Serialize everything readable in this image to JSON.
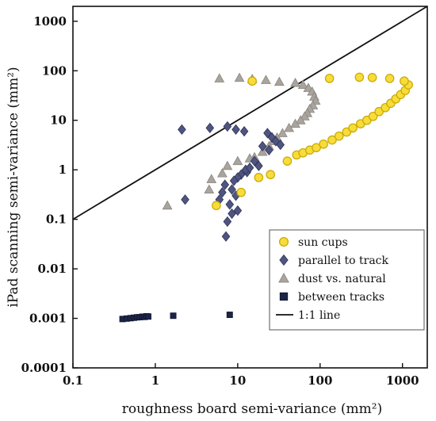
{
  "chart_data": {
    "type": "scatter",
    "xlabel": "roughness board semi-variance (mm²)",
    "ylabel": "iPad scanning semi-variance (mm²)",
    "xscale": "log",
    "yscale": "log",
    "xlim": [
      0.1,
      2000
    ],
    "ylim": [
      0.0001,
      2000
    ],
    "x_ticks": [
      {
        "value": 0.1,
        "label": "0.1"
      },
      {
        "value": 1,
        "label": "1"
      },
      {
        "value": 10,
        "label": "10"
      },
      {
        "value": 100,
        "label": "100"
      },
      {
        "value": 1000,
        "label": "1000"
      }
    ],
    "y_ticks": [
      {
        "value": 0.0001,
        "label": "0.0001"
      },
      {
        "value": 0.001,
        "label": "0.001"
      },
      {
        "value": 0.01,
        "label": "0.01"
      },
      {
        "value": 0.1,
        "label": "0.1"
      },
      {
        "value": 1,
        "label": "1"
      },
      {
        "value": 10,
        "label": "10"
      },
      {
        "value": 100,
        "label": "100"
      },
      {
        "value": 1000,
        "label": "1000"
      }
    ],
    "grid": false,
    "legend_position": "bottom-right",
    "series": [
      {
        "name": "sun cups",
        "marker": "circle",
        "color": "#f7dc3a",
        "stroke": "#c9a800",
        "points": [
          [
            5.5,
            0.19
          ],
          [
            11,
            0.35
          ],
          [
            18,
            0.7
          ],
          [
            25,
            0.8
          ],
          [
            40,
            1.5
          ],
          [
            52,
            2.0
          ],
          [
            62,
            2.2
          ],
          [
            75,
            2.5
          ],
          [
            90,
            2.8
          ],
          [
            110,
            3.3
          ],
          [
            140,
            4.0
          ],
          [
            170,
            4.8
          ],
          [
            210,
            5.8
          ],
          [
            250,
            7.0
          ],
          [
            310,
            8.5
          ],
          [
            370,
            10.0
          ],
          [
            440,
            12.0
          ],
          [
            520,
            15.0
          ],
          [
            620,
            18.0
          ],
          [
            720,
            22.0
          ],
          [
            830,
            27.0
          ],
          [
            950,
            33.0
          ],
          [
            1080,
            40.0
          ],
          [
            1180,
            52.0
          ],
          [
            1050,
            62.0
          ],
          [
            700,
            70.0
          ],
          [
            430,
            73.0
          ],
          [
            300,
            74.0
          ],
          [
            130,
            70.0
          ],
          [
            15,
            62.0
          ]
        ]
      },
      {
        "name": "parallel to track",
        "marker": "diamond",
        "color": "#4f5580",
        "stroke": "#2f3458",
        "points": [
          [
            2.1,
            6.5
          ],
          [
            4.6,
            7.0
          ],
          [
            7.5,
            7.5
          ],
          [
            9.5,
            6.5
          ],
          [
            12,
            6.0
          ],
          [
            23,
            5.5
          ],
          [
            26,
            4.5
          ],
          [
            29,
            3.8
          ],
          [
            33,
            3.2
          ],
          [
            20,
            3.0
          ],
          [
            24,
            2.5
          ],
          [
            16,
            1.5
          ],
          [
            18,
            1.2
          ],
          [
            13,
            0.9
          ],
          [
            11,
            0.8
          ],
          [
            10,
            0.7
          ],
          [
            9,
            0.6
          ],
          [
            12.5,
            1.0
          ],
          [
            14,
            1.1
          ],
          [
            7,
            0.5
          ],
          [
            6.5,
            0.35
          ],
          [
            8.5,
            0.4
          ],
          [
            6,
            0.25
          ],
          [
            8,
            0.2
          ],
          [
            2.3,
            0.25
          ],
          [
            9.5,
            0.3
          ],
          [
            10,
            0.15
          ],
          [
            8.5,
            0.13
          ],
          [
            7.5,
            0.09
          ],
          [
            7.2,
            0.045
          ]
        ]
      },
      {
        "name": "dust vs. natural",
        "marker": "triangle",
        "color": "#a9a49e",
        "stroke": "#8a857f",
        "points": [
          [
            6.0,
            70
          ],
          [
            10.5,
            72
          ],
          [
            15,
            68
          ],
          [
            22,
            65
          ],
          [
            32,
            60
          ],
          [
            50,
            57
          ],
          [
            62,
            52
          ],
          [
            72,
            45
          ],
          [
            80,
            38
          ],
          [
            85,
            30
          ],
          [
            88,
            25
          ],
          [
            82,
            20
          ],
          [
            75,
            17
          ],
          [
            70,
            14
          ],
          [
            65,
            12
          ],
          [
            58,
            10
          ],
          [
            50,
            8.5
          ],
          [
            42,
            7.0
          ],
          [
            35,
            5.5
          ],
          [
            30,
            4.5
          ],
          [
            27,
            3.8
          ],
          [
            24,
            3.0
          ],
          [
            20,
            2.3
          ],
          [
            16,
            1.8
          ],
          [
            14,
            1.7
          ],
          [
            10,
            1.5
          ],
          [
            7.5,
            1.2
          ],
          [
            6.5,
            0.85
          ],
          [
            4.8,
            0.65
          ],
          [
            4.5,
            0.4
          ],
          [
            1.4,
            0.19
          ]
        ]
      },
      {
        "name": "between tracks",
        "marker": "square",
        "color": "#1c2447",
        "stroke": "#0f1530",
        "points": [
          [
            0.4,
            0.00097
          ],
          [
            0.45,
            0.00099
          ],
          [
            0.5,
            0.00101
          ],
          [
            0.55,
            0.00103
          ],
          [
            0.6,
            0.00105
          ],
          [
            0.65,
            0.00106
          ],
          [
            0.7,
            0.00108
          ],
          [
            0.74,
            0.00107
          ],
          [
            0.78,
            0.0011
          ],
          [
            0.82,
            0.00109
          ],
          [
            1.65,
            0.00113
          ],
          [
            8.0,
            0.00118
          ]
        ]
      }
    ],
    "reference_line": {
      "name": "1:1 line",
      "from": [
        0.1,
        0.1
      ],
      "to": [
        2000,
        2000
      ],
      "color": "#111111"
    }
  }
}
